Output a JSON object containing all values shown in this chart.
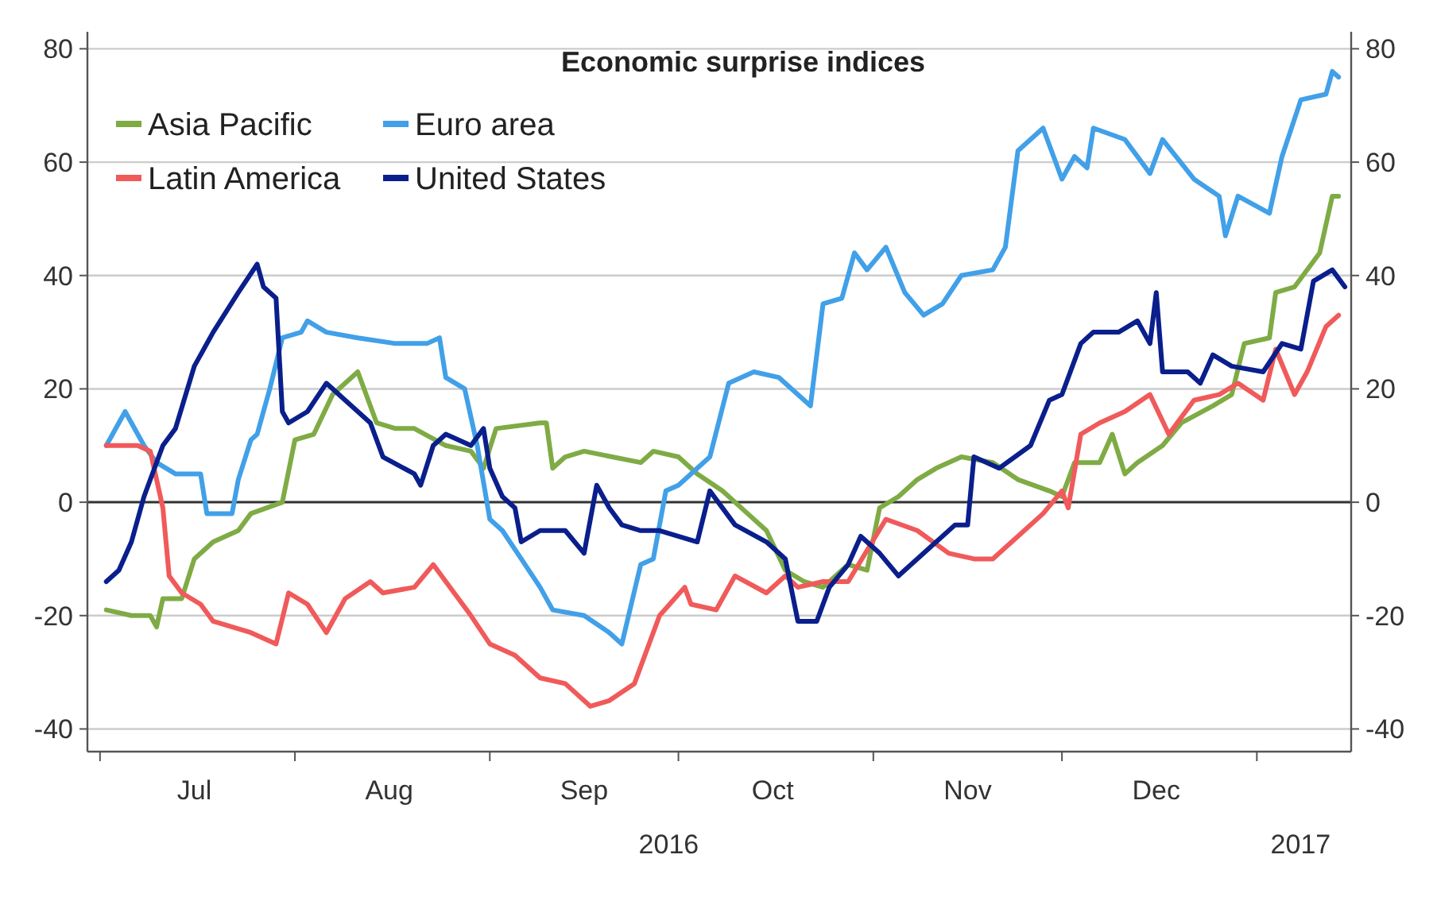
{
  "chart_data": {
    "type": "line",
    "title": "Economic surprise indices",
    "legend": "top left",
    "grid": "y",
    "line_style": "solid",
    "marker": "none",
    "xlim": [
      "2016-06-29",
      "2017-01-16"
    ],
    "xticks": [
      {
        "value": "2016-07-01",
        "label": null
      },
      {
        "value": "2016-07-16",
        "label": "Jul"
      },
      {
        "value": "2016-08-01",
        "label": null
      },
      {
        "value": "2016-08-16",
        "label": "Aug"
      },
      {
        "value": "2016-09-01",
        "label": null
      },
      {
        "value": "2016-09-16",
        "label": "Sep"
      },
      {
        "value": "2016-10-01",
        "label": null
      },
      {
        "value": "2016-10-16",
        "label": "Oct"
      },
      {
        "value": "2016-11-01",
        "label": null
      },
      {
        "value": "2016-11-16",
        "label": "Nov"
      },
      {
        "value": "2016-12-01",
        "label": null
      },
      {
        "value": "2016-12-16",
        "label": "Dec"
      },
      {
        "value": "2017-01-01",
        "label": null
      }
    ],
    "annotations": [
      "2016",
      "2017"
    ],
    "ylim": [
      -44,
      83
    ],
    "yticks": [
      -40,
      -20,
      0,
      20,
      40,
      60,
      80
    ],
    "y2lim": [
      -44,
      83
    ],
    "y2ticks": [
      -40,
      -20,
      0,
      20,
      40,
      60,
      80
    ],
    "ref_lines": [
      {
        "axis": "y",
        "value": 0,
        "color": "#333333"
      }
    ],
    "series": [
      {
        "name": "Asia Pacific",
        "color": "#7fab45",
        "x": [
          "2016-07-02",
          "2016-07-06",
          "2016-07-09",
          "2016-07-10",
          "2016-07-11",
          "2016-07-14",
          "2016-07-16",
          "2016-07-19",
          "2016-07-23",
          "2016-07-25",
          "2016-07-30",
          "2016-08-01",
          "2016-08-04",
          "2016-08-07",
          "2016-08-11",
          "2016-08-14",
          "2016-08-17",
          "2016-08-20",
          "2016-08-25",
          "2016-08-29",
          "2016-08-31",
          "2016-09-02",
          "2016-09-09",
          "2016-09-10",
          "2016-09-11",
          "2016-09-13",
          "2016-09-16",
          "2016-09-25",
          "2016-09-27",
          "2016-10-01",
          "2016-10-04",
          "2016-10-08",
          "2016-10-12",
          "2016-10-15",
          "2016-10-18",
          "2016-10-21",
          "2016-10-24",
          "2016-10-28",
          "2016-10-31",
          "2016-11-02",
          "2016-11-05",
          "2016-11-08",
          "2016-11-11",
          "2016-11-15",
          "2016-11-20",
          "2016-11-24",
          "2016-11-29",
          "2016-12-01",
          "2016-12-03",
          "2016-12-07",
          "2016-12-09",
          "2016-12-11",
          "2016-12-13",
          "2016-12-17",
          "2016-12-20",
          "2016-12-25",
          "2016-12-28",
          "2016-12-30",
          "2017-01-03",
          "2017-01-04",
          "2017-01-07",
          "2017-01-11",
          "2017-01-13",
          "2017-01-14"
        ],
        "values": [
          -19,
          -20,
          -20,
          -22,
          -17,
          -17,
          -10,
          -7,
          -5,
          -2,
          0,
          11,
          12,
          19,
          23,
          14,
          13,
          13,
          10,
          9,
          6,
          13,
          14,
          14,
          6,
          8,
          9,
          7,
          9,
          8,
          5,
          2,
          -2,
          -5,
          -12,
          -14,
          -15,
          -11,
          -12,
          -1,
          1,
          4,
          6,
          8,
          7,
          4,
          2,
          1,
          7,
          7,
          12,
          5,
          7,
          10,
          14,
          17,
          19,
          28,
          29,
          37,
          38,
          44,
          54,
          54
        ]
      },
      {
        "name": "Euro area",
        "color": "#41a0e8",
        "x": [
          "2016-07-02",
          "2016-07-05",
          "2016-07-08",
          "2016-07-10",
          "2016-07-13",
          "2016-07-17",
          "2016-07-18",
          "2016-07-22",
          "2016-07-23",
          "2016-07-25",
          "2016-07-26",
          "2016-07-28",
          "2016-07-30",
          "2016-08-02",
          "2016-08-03",
          "2016-08-06",
          "2016-08-11",
          "2016-08-17",
          "2016-08-22",
          "2016-08-24",
          "2016-08-25",
          "2016-08-28",
          "2016-08-30",
          "2016-09-01",
          "2016-09-03",
          "2016-09-06",
          "2016-09-09",
          "2016-09-11",
          "2016-09-16",
          "2016-09-20",
          "2016-09-22",
          "2016-09-25",
          "2016-09-27",
          "2016-09-29",
          "2016-10-01",
          "2016-10-06",
          "2016-10-09",
          "2016-10-13",
          "2016-10-17",
          "2016-10-22",
          "2016-10-24",
          "2016-10-27",
          "2016-10-29",
          "2016-10-31",
          "2016-11-03",
          "2016-11-06",
          "2016-11-09",
          "2016-11-12",
          "2016-11-15",
          "2016-11-20",
          "2016-11-22",
          "2016-11-24",
          "2016-11-28",
          "2016-12-01",
          "2016-12-03",
          "2016-12-05",
          "2016-12-06",
          "2016-12-11",
          "2016-12-15",
          "2016-12-17",
          "2016-12-22",
          "2016-12-26",
          "2016-12-27",
          "2016-12-29",
          "2017-01-03",
          "2017-01-05",
          "2017-01-08",
          "2017-01-12",
          "2017-01-13",
          "2017-01-14"
        ],
        "values": [
          10,
          16,
          10,
          7,
          5,
          5,
          -2,
          -2,
          4,
          11,
          12,
          20,
          29,
          30,
          32,
          30,
          29,
          28,
          28,
          29,
          22,
          20,
          10,
          -3,
          -5,
          -10,
          -15,
          -19,
          -20,
          -23,
          -25,
          -11,
          -10,
          2,
          3,
          8,
          21,
          23,
          22,
          17,
          35,
          36,
          44,
          41,
          45,
          37,
          33,
          35,
          40,
          41,
          45,
          62,
          66,
          57,
          61,
          59,
          66,
          64,
          58,
          64,
          57,
          54,
          47,
          54,
          51,
          61,
          71,
          72,
          76,
          75
        ]
      },
      {
        "name": "Latin America",
        "color": "#f05a5a",
        "x": [
          "2016-07-02",
          "2016-07-07",
          "2016-07-09",
          "2016-07-11",
          "2016-07-12",
          "2016-07-14",
          "2016-07-17",
          "2016-07-19",
          "2016-07-25",
          "2016-07-29",
          "2016-07-31",
          "2016-08-03",
          "2016-08-06",
          "2016-08-09",
          "2016-08-13",
          "2016-08-15",
          "2016-08-20",
          "2016-08-23",
          "2016-08-25",
          "2016-08-29",
          "2016-09-01",
          "2016-09-05",
          "2016-09-09",
          "2016-09-13",
          "2016-09-17",
          "2016-09-20",
          "2016-09-24",
          "2016-09-28",
          "2016-10-02",
          "2016-10-03",
          "2016-10-07",
          "2016-10-10",
          "2016-10-15",
          "2016-10-18",
          "2016-10-20",
          "2016-10-24",
          "2016-10-28",
          "2016-11-03",
          "2016-11-08",
          "2016-11-13",
          "2016-11-17",
          "2016-11-20",
          "2016-11-24",
          "2016-11-28",
          "2016-12-01",
          "2016-12-02",
          "2016-12-04",
          "2016-12-07",
          "2016-12-11",
          "2016-12-15",
          "2016-12-18",
          "2016-12-22",
          "2016-12-26",
          "2016-12-29",
          "2017-01-02",
          "2017-01-04",
          "2017-01-07",
          "2017-01-09",
          "2017-01-12",
          "2017-01-14"
        ],
        "values": [
          10,
          10,
          9,
          -1,
          -13,
          -16,
          -18,
          -21,
          -23,
          -25,
          -16,
          -18,
          -23,
          -17,
          -14,
          -16,
          -15,
          -11,
          -14,
          -20,
          -25,
          -27,
          -31,
          -32,
          -36,
          -35,
          -32,
          -20,
          -15,
          -18,
          -19,
          -13,
          -16,
          -13,
          -15,
          -14,
          -14,
          -3,
          -5,
          -9,
          -10,
          -10,
          -6,
          -2,
          2,
          -1,
          12,
          14,
          16,
          19,
          12,
          18,
          19,
          21,
          18,
          27,
          19,
          23,
          31,
          33
        ]
      },
      {
        "name": "United States",
        "color": "#0a1f8c",
        "x": [
          "2016-07-02",
          "2016-07-04",
          "2016-07-06",
          "2016-07-08",
          "2016-07-11",
          "2016-07-13",
          "2016-07-16",
          "2016-07-19",
          "2016-07-23",
          "2016-07-26",
          "2016-07-27",
          "2016-07-29",
          "2016-07-30",
          "2016-07-31",
          "2016-08-03",
          "2016-08-06",
          "2016-08-09",
          "2016-08-13",
          "2016-08-15",
          "2016-08-20",
          "2016-08-21",
          "2016-08-23",
          "2016-08-25",
          "2016-08-29",
          "2016-08-31",
          "2016-09-01",
          "2016-09-03",
          "2016-09-05",
          "2016-09-06",
          "2016-09-09",
          "2016-09-13",
          "2016-09-16",
          "2016-09-18",
          "2016-09-20",
          "2016-09-22",
          "2016-09-25",
          "2016-09-28",
          "2016-10-04",
          "2016-10-06",
          "2016-10-10",
          "2016-10-15",
          "2016-10-18",
          "2016-10-20",
          "2016-10-23",
          "2016-10-25",
          "2016-10-28",
          "2016-10-30",
          "2016-11-02",
          "2016-11-05",
          "2016-11-09",
          "2016-11-14",
          "2016-11-16",
          "2016-11-17",
          "2016-11-21",
          "2016-11-26",
          "2016-11-29",
          "2016-12-01",
          "2016-12-04",
          "2016-12-06",
          "2016-12-10",
          "2016-12-13",
          "2016-12-15",
          "2016-12-16",
          "2016-12-17",
          "2016-12-21",
          "2016-12-23",
          "2016-12-25",
          "2016-12-28",
          "2017-01-02",
          "2017-01-05",
          "2017-01-08",
          "2017-01-10",
          "2017-01-13",
          "2017-01-15"
        ],
        "values": [
          -14,
          -12,
          -7,
          1,
          10,
          13,
          24,
          30,
          37,
          42,
          38,
          36,
          16,
          14,
          16,
          21,
          18,
          14,
          8,
          5,
          3,
          10,
          12,
          10,
          13,
          6,
          1,
          -1,
          -7,
          -5,
          -5,
          -9,
          3,
          -1,
          -4,
          -5,
          -5,
          -7,
          2,
          -4,
          -7,
          -10,
          -21,
          -21,
          -15,
          -11,
          -6,
          -9,
          -13,
          -9,
          -4,
          -4,
          8,
          6,
          10,
          18,
          19,
          28,
          30,
          30,
          32,
          28,
          37,
          23,
          23,
          21,
          26,
          24,
          23,
          28,
          27,
          39,
          41,
          38
        ]
      }
    ]
  }
}
